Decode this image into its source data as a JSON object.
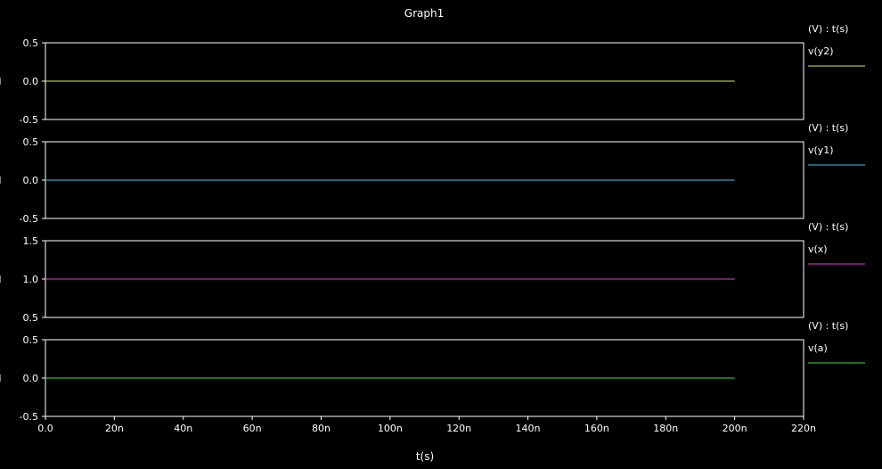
{
  "chart_data": {
    "type": "line",
    "title": "Graph1",
    "xlabel": "t(s)",
    "xlim": [
      0,
      220
    ],
    "x_ticks": [
      "0.0",
      "20n",
      "40n",
      "60n",
      "80n",
      "100n",
      "120n",
      "140n",
      "160n",
      "180n",
      "200n",
      "220n"
    ],
    "x_tick_values": [
      0,
      20,
      40,
      60,
      80,
      100,
      120,
      140,
      160,
      180,
      200,
      220
    ],
    "panels": [
      {
        "legend_header": "(V) : t(s)",
        "ylim": [
          -0.5,
          0.5
        ],
        "y_ticks": [
          "0.5",
          "0.0",
          "-0.5"
        ],
        "y_tick_values": [
          0.5,
          0.0,
          -0.5
        ],
        "series": [
          {
            "name": "v(y2)",
            "color": "#e6e65a",
            "x": [
              0,
              200
            ],
            "values": [
              0.0,
              0.0
            ]
          }
        ]
      },
      {
        "legend_header": "(V) : t(s)",
        "ylim": [
          -0.5,
          0.5
        ],
        "y_ticks": [
          "0.5",
          "0.0",
          "-0.5"
        ],
        "y_tick_values": [
          0.5,
          0.0,
          -0.5
        ],
        "series": [
          {
            "name": "v(y1)",
            "color": "#3cc8dc",
            "x": [
              0,
              200
            ],
            "values": [
              0.0,
              0.0
            ]
          }
        ]
      },
      {
        "legend_header": "(V) : t(s)",
        "ylim": [
          0.5,
          1.5
        ],
        "y_ticks": [
          "1.5",
          "1.0",
          "0.5"
        ],
        "y_tick_values": [
          1.5,
          1.0,
          0.5
        ],
        "series": [
          {
            "name": "v(x)",
            "color": "#dc3cdc",
            "x": [
              0,
              200
            ],
            "values": [
              1.0,
              1.0
            ]
          }
        ]
      },
      {
        "legend_header": "(V) : t(s)",
        "ylim": [
          -0.5,
          0.5
        ],
        "y_ticks": [
          "0.5",
          "0.0",
          "-0.5"
        ],
        "y_tick_values": [
          0.5,
          0.0,
          -0.5
        ],
        "series": [
          {
            "name": "v(a)",
            "color": "#3cdc3c",
            "x": [
              0,
              200
            ],
            "values": [
              0.0,
              0.0
            ]
          }
        ]
      }
    ],
    "grid": false,
    "legend_position": "right"
  }
}
